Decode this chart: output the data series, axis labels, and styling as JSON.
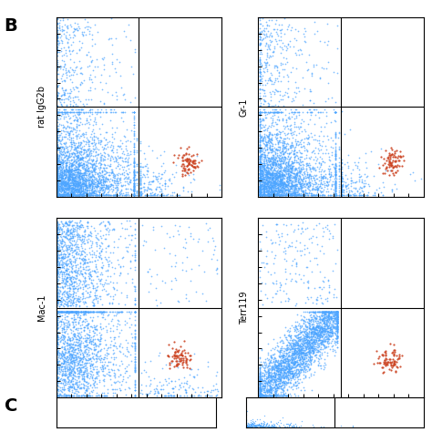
{
  "panel_label": "B",
  "panel_label_fontsize": 16,
  "panel_label_bold": true,
  "subplot_labels": [
    "rat IgG2b",
    "Gr-1",
    "Mac-1",
    "Terr119"
  ],
  "subplot_label_rotation": 90,
  "n_blue_main": 3000,
  "n_blue_upper": 300,
  "n_red": 80,
  "blue_color": "#4da6ff",
  "red_color": "#cc4422",
  "background_color": "#ffffff",
  "grid_line_color": "#000000",
  "axis_line_color": "#000000",
  "tick_color": "#000000",
  "xlim": [
    0,
    1024
  ],
  "ylim": [
    0,
    1024
  ],
  "gate_x": 512,
  "gate_y": 512,
  "red_cluster_x": 820,
  "red_cluster_y": 200,
  "red_cluster_x_mac1": 750,
  "red_cluster_y_mac1": 220,
  "red_cluster_x_terr": 800,
  "red_cluster_y_terr": 200,
  "seed_base": 42,
  "figsize": [
    4.74,
    4.74
  ],
  "dpi": 100
}
